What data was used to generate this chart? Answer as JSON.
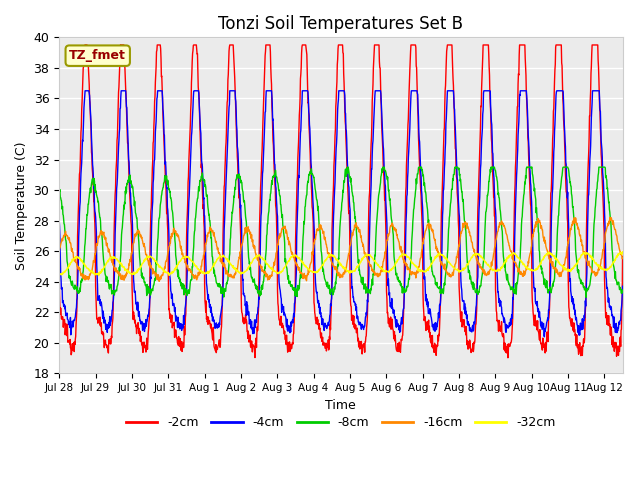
{
  "title": "Tonzi Soil Temperatures Set B",
  "xlabel": "Time",
  "ylabel": "Soil Temperature (C)",
  "ylim": [
    18,
    40
  ],
  "xlim": [
    0,
    15.5
  ],
  "plot_bg": "#ebebeb",
  "annotation_text": "TZ_fmet",
  "annotation_box_color": "#ffffcc",
  "annotation_text_color": "#990000",
  "annotation_border_color": "#999900",
  "series_colors": [
    "#ff0000",
    "#0000ff",
    "#00cc00",
    "#ff8800",
    "#ffff00"
  ],
  "series_labels": [
    "-2cm",
    "-4cm",
    "-8cm",
    "-16cm",
    "-32cm"
  ],
  "x_tick_labels": [
    "Jul 28",
    "Jul 29",
    "Jul 30",
    "Jul 31",
    "Aug 1",
    "Aug 2",
    "Aug 3",
    "Aug 4",
    "Aug 5",
    "Aug 6",
    "Aug 7",
    "Aug 8",
    "Aug 9",
    "Aug 10",
    "Aug 11",
    "Aug 12"
  ],
  "x_tick_positions": [
    0,
    1,
    2,
    3,
    4,
    5,
    6,
    7,
    8,
    9,
    10,
    11,
    12,
    13,
    14,
    15
  ]
}
